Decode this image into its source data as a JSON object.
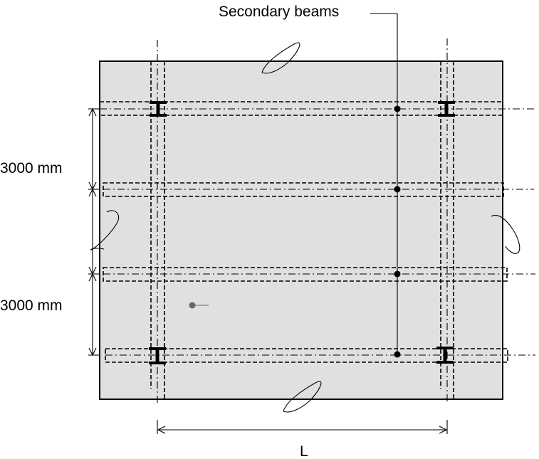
{
  "labels": {
    "secondary_beams": "Secondary beams",
    "span_top": "3000 mm",
    "span_bottom": "3000 mm",
    "span_length": "L"
  },
  "colors": {
    "slab_fill": "#e0e0e0",
    "stroke": "#000000",
    "marker": "#666666"
  }
}
